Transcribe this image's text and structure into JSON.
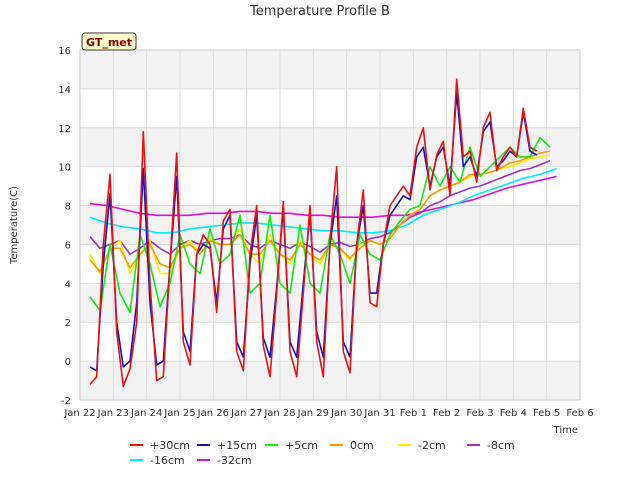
{
  "chart_data": {
    "type": "line",
    "title": "Temperature Profile B",
    "xlabel": "Time",
    "ylabel": "Temperature(C)",
    "badge": "GT_met",
    "ylim": [
      -2,
      16
    ],
    "yticks": [
      -2,
      0,
      2,
      4,
      6,
      8,
      10,
      12,
      14,
      16
    ],
    "xlim": [
      0,
      15
    ],
    "xticks": [
      {
        "pos": 0,
        "label": "Jan 22"
      },
      {
        "pos": 1,
        "label": "Jan 23"
      },
      {
        "pos": 2,
        "label": "Jan 24"
      },
      {
        "pos": 3,
        "label": "Jan 25"
      },
      {
        "pos": 4,
        "label": "Jan 26"
      },
      {
        "pos": 5,
        "label": "Jan 27"
      },
      {
        "pos": 6,
        "label": "Jan 28"
      },
      {
        "pos": 7,
        "label": "Jan 29"
      },
      {
        "pos": 8,
        "label": "Jan 30"
      },
      {
        "pos": 9,
        "label": "Jan 31"
      },
      {
        "pos": 10,
        "label": "Feb 1"
      },
      {
        "pos": 11,
        "label": "Feb 2"
      },
      {
        "pos": 12,
        "label": "Feb 3"
      },
      {
        "pos": 13,
        "label": "Feb 4"
      },
      {
        "pos": 14,
        "label": "Feb 5"
      },
      {
        "pos": 15,
        "label": "Feb 6"
      }
    ],
    "grid": true,
    "legend_position": "bottom",
    "series": [
      {
        "name": "+30cm",
        "color": "#ee1111",
        "x": [
          0.3,
          0.5,
          0.7,
          0.9,
          1.1,
          1.3,
          1.5,
          1.7,
          1.9,
          2.1,
          2.3,
          2.5,
          2.7,
          2.9,
          3.1,
          3.3,
          3.5,
          3.7,
          3.9,
          4.1,
          4.3,
          4.5,
          4.7,
          4.9,
          5.1,
          5.3,
          5.5,
          5.7,
          5.9,
          6.1,
          6.3,
          6.5,
          6.7,
          6.9,
          7.1,
          7.3,
          7.5,
          7.7,
          7.9,
          8.1,
          8.3,
          8.5,
          8.7,
          8.9,
          9.1,
          9.3,
          9.5,
          9.7,
          9.9,
          10.1,
          10.3,
          10.5,
          10.7,
          10.9,
          11.1,
          11.3,
          11.5,
          11.7,
          11.9,
          12.1,
          12.3,
          12.5,
          12.7,
          12.9,
          13.1,
          13.3,
          13.5,
          13.7,
          13.9,
          14.1,
          14.3
        ],
        "y": [
          -1.2,
          -0.8,
          6.0,
          9.6,
          1.5,
          -1.3,
          -0.4,
          2.0,
          11.8,
          4.0,
          -1.0,
          -0.8,
          5.0,
          10.7,
          1.0,
          -0.2,
          5.5,
          6.5,
          6.0,
          2.5,
          7.2,
          7.8,
          0.5,
          -0.5,
          5.5,
          8.0,
          0.8,
          -0.8,
          3.5,
          8.2,
          0.5,
          -0.8,
          3.5,
          8.0,
          1.0,
          -0.8,
          6.2,
          10.0,
          0.5,
          -0.6,
          6.0,
          8.8,
          3.0,
          2.8,
          6.0,
          8.0,
          8.5,
          9.0,
          8.5,
          11.0,
          12.0,
          8.8,
          10.6,
          11.3,
          8.5,
          14.5,
          10.5,
          10.8,
          9.2,
          12.0,
          12.8,
          9.8,
          10.5,
          11.0,
          10.5,
          13.0,
          11.0,
          10.8,
          null,
          null,
          null
        ]
      },
      {
        "name": "+15cm",
        "color": "#1111cc",
        "x": [
          0.3,
          0.5,
          0.7,
          0.9,
          1.1,
          1.3,
          1.5,
          1.7,
          1.9,
          2.1,
          2.3,
          2.5,
          2.7,
          2.9,
          3.1,
          3.3,
          3.5,
          3.7,
          3.9,
          4.1,
          4.3,
          4.5,
          4.7,
          4.9,
          5.1,
          5.3,
          5.5,
          5.7,
          5.9,
          6.1,
          6.3,
          6.5,
          6.7,
          6.9,
          7.1,
          7.3,
          7.5,
          7.7,
          7.9,
          8.1,
          8.3,
          8.5,
          8.7,
          8.9,
          9.1,
          9.3,
          9.5,
          9.7,
          9.9,
          10.1,
          10.3,
          10.5,
          10.7,
          10.9,
          11.1,
          11.3,
          11.5,
          11.7,
          11.9,
          12.1,
          12.3,
          12.5,
          12.7,
          12.9,
          13.1,
          13.3,
          13.5,
          13.7,
          13.9,
          14.1,
          14.3
        ],
        "y": [
          -0.3,
          -0.5,
          5.0,
          8.6,
          2.0,
          -0.3,
          0.0,
          3.0,
          9.9,
          3.0,
          -0.2,
          0.0,
          5.0,
          9.5,
          1.5,
          0.5,
          5.5,
          6.0,
          5.8,
          3.0,
          6.8,
          7.5,
          1.0,
          0.2,
          5.0,
          7.5,
          1.2,
          0.2,
          3.8,
          7.8,
          1.0,
          0.2,
          4.0,
          7.6,
          1.5,
          0.2,
          6.0,
          8.5,
          1.0,
          0.2,
          6.0,
          8.0,
          3.5,
          3.5,
          6.0,
          7.5,
          8.0,
          8.5,
          8.3,
          10.5,
          11.0,
          9.0,
          10.5,
          11.0,
          9.0,
          13.8,
          10.0,
          10.5,
          9.5,
          11.8,
          12.3,
          10.0,
          10.3,
          10.8,
          10.5,
          12.8,
          10.8,
          10.6,
          null,
          null,
          null
        ]
      },
      {
        "name": "+5cm",
        "color": "#11ee11",
        "x": [
          0.3,
          0.6,
          0.9,
          1.2,
          1.5,
          1.8,
          2.1,
          2.4,
          2.7,
          3.0,
          3.3,
          3.6,
          3.9,
          4.2,
          4.5,
          4.8,
          5.1,
          5.4,
          5.7,
          6.0,
          6.3,
          6.6,
          6.9,
          7.2,
          7.5,
          7.8,
          8.1,
          8.4,
          8.7,
          9.0,
          9.3,
          9.6,
          9.9,
          10.2,
          10.5,
          10.8,
          11.1,
          11.4,
          11.7,
          12.0,
          12.3,
          12.6,
          12.9,
          13.2,
          13.5,
          13.8,
          14.1,
          14.3
        ],
        "y": [
          3.3,
          2.6,
          6.0,
          3.5,
          2.5,
          6.5,
          5.0,
          2.8,
          4.0,
          6.5,
          5.0,
          4.5,
          6.8,
          5.0,
          5.5,
          7.5,
          3.5,
          4.0,
          7.5,
          4.0,
          3.5,
          7.0,
          4.0,
          3.5,
          6.5,
          5.5,
          4.0,
          6.5,
          5.5,
          5.2,
          6.5,
          7.2,
          7.8,
          8.0,
          10.0,
          9.0,
          10.0,
          9.2,
          11.0,
          9.5,
          10.0,
          10.5,
          11.0,
          10.5,
          10.5,
          11.5,
          11.0,
          null
        ]
      },
      {
        "name": "0cm",
        "color": "#ff9900",
        "x": [
          0.3,
          0.6,
          0.9,
          1.2,
          1.5,
          1.8,
          2.1,
          2.4,
          2.7,
          3.0,
          3.3,
          3.6,
          3.9,
          4.2,
          4.5,
          4.8,
          5.1,
          5.4,
          5.7,
          6.0,
          6.3,
          6.6,
          6.9,
          7.2,
          7.5,
          7.8,
          8.1,
          8.4,
          8.7,
          9.0,
          9.3,
          9.6,
          9.9,
          10.2,
          10.5,
          10.8,
          11.1,
          11.4,
          11.7,
          12.0,
          12.3,
          12.6,
          12.9,
          13.2,
          13.5,
          13.8,
          14.1,
          14.3
        ],
        "y": [
          5.2,
          4.6,
          5.8,
          5.8,
          4.8,
          5.5,
          6.0,
          5.0,
          4.8,
          5.8,
          6.0,
          5.5,
          6.2,
          6.0,
          6.0,
          6.5,
          5.5,
          5.5,
          6.2,
          5.5,
          5.2,
          6.0,
          5.5,
          5.2,
          6.0,
          5.8,
          5.3,
          5.8,
          6.2,
          6.0,
          6.3,
          7.0,
          7.5,
          7.8,
          8.5,
          8.8,
          9.0,
          9.2,
          9.6,
          9.6,
          9.7,
          9.9,
          10.2,
          10.3,
          10.5,
          10.7,
          10.8,
          null
        ]
      },
      {
        "name": "-2cm",
        "color": "#ffee00",
        "x": [
          0.3,
          0.6,
          0.9,
          1.2,
          1.5,
          1.8,
          2.1,
          2.4,
          2.7,
          3.0,
          3.3,
          3.6,
          3.9,
          4.2,
          4.5,
          4.8,
          5.1,
          5.4,
          5.7,
          6.0,
          6.3,
          6.6,
          6.9,
          7.2,
          7.5,
          7.8,
          8.1,
          8.4,
          8.7,
          9.0,
          9.3,
          9.6,
          9.9,
          10.2,
          10.5,
          10.8,
          11.1,
          11.4,
          11.7,
          12.0,
          12.3,
          12.6,
          12.9,
          13.2,
          13.5,
          13.8,
          14.1,
          14.3
        ],
        "y": [
          5.5,
          4.5,
          5.8,
          6.2,
          4.5,
          5.5,
          6.2,
          4.5,
          4.5,
          5.8,
          6.2,
          5.5,
          6.3,
          6.0,
          6.0,
          6.8,
          5.5,
          5.0,
          6.5,
          5.5,
          5.0,
          6.2,
          5.5,
          5.0,
          6.0,
          5.8,
          5.2,
          6.0,
          6.2,
          6.0,
          6.3,
          7.0,
          7.5,
          7.8,
          8.5,
          8.8,
          9.0,
          9.2,
          9.5,
          9.6,
          9.7,
          9.9,
          10.0,
          10.2,
          10.4,
          10.5,
          10.6,
          null
        ]
      },
      {
        "name": "-8cm",
        "color": "#9933cc",
        "x": [
          0.3,
          0.6,
          0.9,
          1.2,
          1.5,
          1.8,
          2.1,
          2.4,
          2.7,
          3.0,
          3.3,
          3.6,
          3.9,
          4.2,
          4.5,
          4.8,
          5.1,
          5.4,
          5.7,
          6.0,
          6.3,
          6.6,
          6.9,
          7.2,
          7.5,
          7.8,
          8.1,
          8.4,
          8.7,
          9.0,
          9.3,
          9.6,
          9.9,
          10.2,
          10.5,
          10.8,
          11.1,
          11.4,
          11.7,
          12.0,
          12.3,
          12.6,
          12.9,
          13.2,
          13.5,
          13.8,
          14.1,
          14.3
        ],
        "y": [
          6.4,
          5.8,
          6.0,
          6.2,
          5.5,
          5.8,
          6.2,
          5.8,
          5.5,
          6.0,
          6.2,
          6.0,
          6.2,
          6.3,
          6.3,
          6.5,
          6.0,
          5.8,
          6.2,
          6.0,
          5.8,
          6.1,
          5.9,
          5.6,
          6.0,
          6.1,
          5.9,
          6.0,
          6.3,
          6.4,
          6.6,
          7.0,
          7.4,
          7.6,
          8.0,
          8.2,
          8.5,
          8.7,
          8.9,
          9.0,
          9.2,
          9.4,
          9.6,
          9.8,
          9.9,
          10.1,
          10.3,
          null
        ]
      },
      {
        "name": "-16cm",
        "color": "#00eeee",
        "x": [
          0.3,
          0.8,
          1.3,
          1.8,
          2.3,
          2.8,
          3.3,
          3.8,
          4.3,
          4.8,
          5.3,
          5.8,
          6.3,
          6.8,
          7.3,
          7.8,
          8.3,
          8.8,
          9.3,
          9.8,
          10.3,
          10.8,
          11.3,
          11.8,
          12.3,
          12.8,
          13.3,
          13.8,
          14.3
        ],
        "y": [
          7.4,
          7.1,
          6.9,
          6.8,
          6.6,
          6.6,
          6.8,
          6.9,
          7.0,
          7.1,
          7.1,
          7.0,
          6.9,
          6.8,
          6.7,
          6.7,
          6.6,
          6.6,
          6.7,
          7.0,
          7.5,
          7.8,
          8.1,
          8.5,
          8.8,
          9.1,
          9.4,
          9.6,
          9.9
        ]
      },
      {
        "name": "-32cm",
        "color": "#dd11dd",
        "x": [
          0.3,
          0.8,
          1.3,
          1.8,
          2.3,
          2.8,
          3.3,
          3.8,
          4.3,
          4.8,
          5.3,
          5.8,
          6.3,
          6.8,
          7.3,
          7.8,
          8.3,
          8.8,
          9.3,
          9.8,
          10.3,
          10.8,
          11.3,
          11.8,
          12.3,
          12.8,
          13.3,
          13.8,
          14.3
        ],
        "y": [
          8.1,
          8.0,
          7.8,
          7.6,
          7.5,
          7.5,
          7.5,
          7.6,
          7.6,
          7.7,
          7.7,
          7.6,
          7.6,
          7.5,
          7.5,
          7.4,
          7.4,
          7.4,
          7.5,
          7.5,
          7.7,
          7.9,
          8.1,
          8.3,
          8.6,
          8.9,
          9.1,
          9.3,
          9.5
        ]
      }
    ]
  }
}
